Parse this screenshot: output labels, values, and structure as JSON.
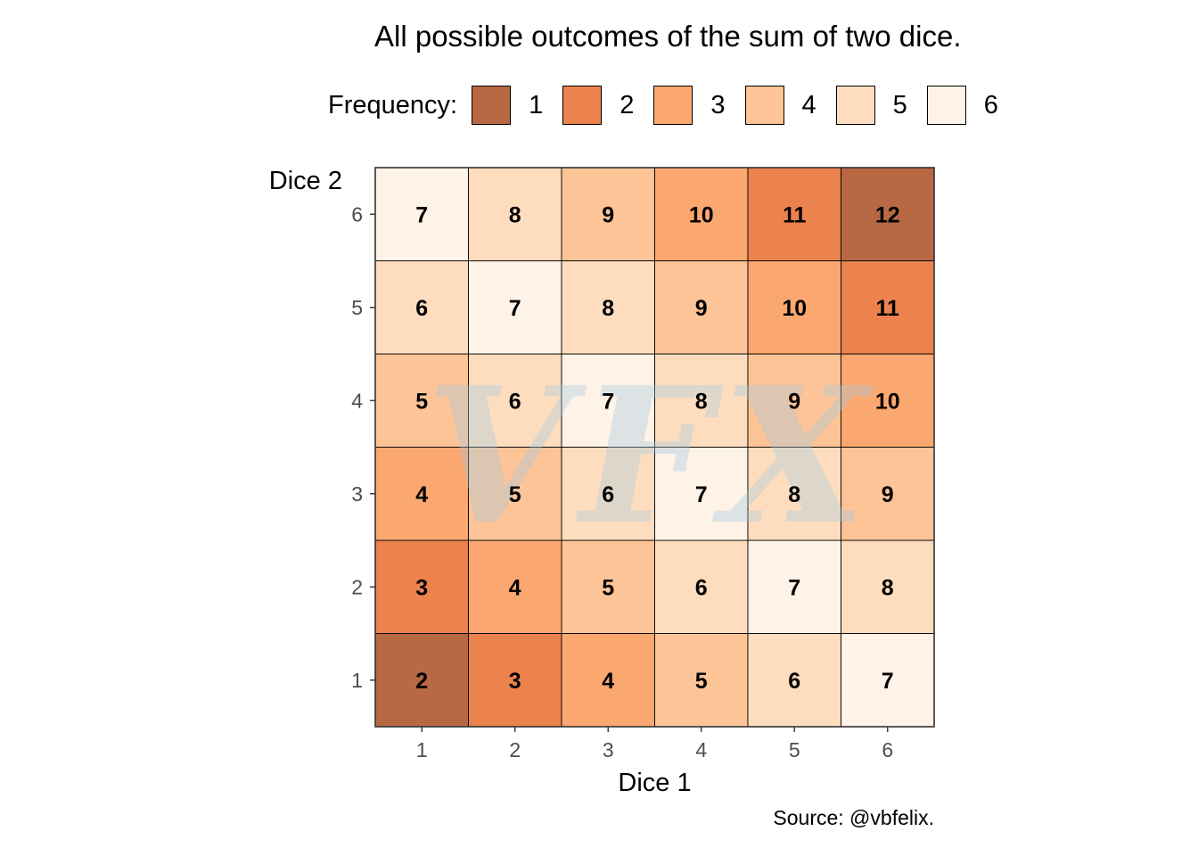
{
  "chart_data": {
    "type": "heatmap",
    "title": "All possible outcomes of the sum of two dice.",
    "xlabel": "Dice 1",
    "ylabel": "Dice 2",
    "x_ticks": [
      "1",
      "2",
      "3",
      "4",
      "5",
      "6"
    ],
    "y_ticks": [
      "1",
      "2",
      "3",
      "4",
      "5",
      "6"
    ],
    "legend": {
      "title": "Frequency:",
      "placement": "top",
      "items": [
        {
          "label": "1",
          "color": "#B86843"
        },
        {
          "label": "2",
          "color": "#EC824E"
        },
        {
          "label": "3",
          "color": "#FBA870"
        },
        {
          "label": "4",
          "color": "#FDC497"
        },
        {
          "label": "5",
          "color": "#FEDDBF"
        },
        {
          "label": "6",
          "color": "#FFF2E6"
        }
      ]
    },
    "cells": [
      {
        "dice1": 1,
        "dice2": 1,
        "sum": 2,
        "frequency": 1
      },
      {
        "dice1": 2,
        "dice2": 1,
        "sum": 3,
        "frequency": 2
      },
      {
        "dice1": 3,
        "dice2": 1,
        "sum": 4,
        "frequency": 3
      },
      {
        "dice1": 4,
        "dice2": 1,
        "sum": 5,
        "frequency": 4
      },
      {
        "dice1": 5,
        "dice2": 1,
        "sum": 6,
        "frequency": 5
      },
      {
        "dice1": 6,
        "dice2": 1,
        "sum": 7,
        "frequency": 6
      },
      {
        "dice1": 1,
        "dice2": 2,
        "sum": 3,
        "frequency": 2
      },
      {
        "dice1": 2,
        "dice2": 2,
        "sum": 4,
        "frequency": 3
      },
      {
        "dice1": 3,
        "dice2": 2,
        "sum": 5,
        "frequency": 4
      },
      {
        "dice1": 4,
        "dice2": 2,
        "sum": 6,
        "frequency": 5
      },
      {
        "dice1": 5,
        "dice2": 2,
        "sum": 7,
        "frequency": 6
      },
      {
        "dice1": 6,
        "dice2": 2,
        "sum": 8,
        "frequency": 5
      },
      {
        "dice1": 1,
        "dice2": 3,
        "sum": 4,
        "frequency": 3
      },
      {
        "dice1": 2,
        "dice2": 3,
        "sum": 5,
        "frequency": 4
      },
      {
        "dice1": 3,
        "dice2": 3,
        "sum": 6,
        "frequency": 5
      },
      {
        "dice1": 4,
        "dice2": 3,
        "sum": 7,
        "frequency": 6
      },
      {
        "dice1": 5,
        "dice2": 3,
        "sum": 8,
        "frequency": 5
      },
      {
        "dice1": 6,
        "dice2": 3,
        "sum": 9,
        "frequency": 4
      },
      {
        "dice1": 1,
        "dice2": 4,
        "sum": 5,
        "frequency": 4
      },
      {
        "dice1": 2,
        "dice2": 4,
        "sum": 6,
        "frequency": 5
      },
      {
        "dice1": 3,
        "dice2": 4,
        "sum": 7,
        "frequency": 6
      },
      {
        "dice1": 4,
        "dice2": 4,
        "sum": 8,
        "frequency": 5
      },
      {
        "dice1": 5,
        "dice2": 4,
        "sum": 9,
        "frequency": 4
      },
      {
        "dice1": 6,
        "dice2": 4,
        "sum": 10,
        "frequency": 3
      },
      {
        "dice1": 1,
        "dice2": 5,
        "sum": 6,
        "frequency": 5
      },
      {
        "dice1": 2,
        "dice2": 5,
        "sum": 7,
        "frequency": 6
      },
      {
        "dice1": 3,
        "dice2": 5,
        "sum": 8,
        "frequency": 5
      },
      {
        "dice1": 4,
        "dice2": 5,
        "sum": 9,
        "frequency": 4
      },
      {
        "dice1": 5,
        "dice2": 5,
        "sum": 10,
        "frequency": 3
      },
      {
        "dice1": 6,
        "dice2": 5,
        "sum": 11,
        "frequency": 2
      },
      {
        "dice1": 1,
        "dice2": 6,
        "sum": 7,
        "frequency": 6
      },
      {
        "dice1": 2,
        "dice2": 6,
        "sum": 8,
        "frequency": 5
      },
      {
        "dice1": 3,
        "dice2": 6,
        "sum": 9,
        "frequency": 4
      },
      {
        "dice1": 4,
        "dice2": 6,
        "sum": 10,
        "frequency": 3
      },
      {
        "dice1": 5,
        "dice2": 6,
        "sum": 11,
        "frequency": 2
      },
      {
        "dice1": 6,
        "dice2": 6,
        "sum": 12,
        "frequency": 1
      }
    ],
    "caption": "Source: @vbfelix.",
    "watermark": "VFX"
  }
}
